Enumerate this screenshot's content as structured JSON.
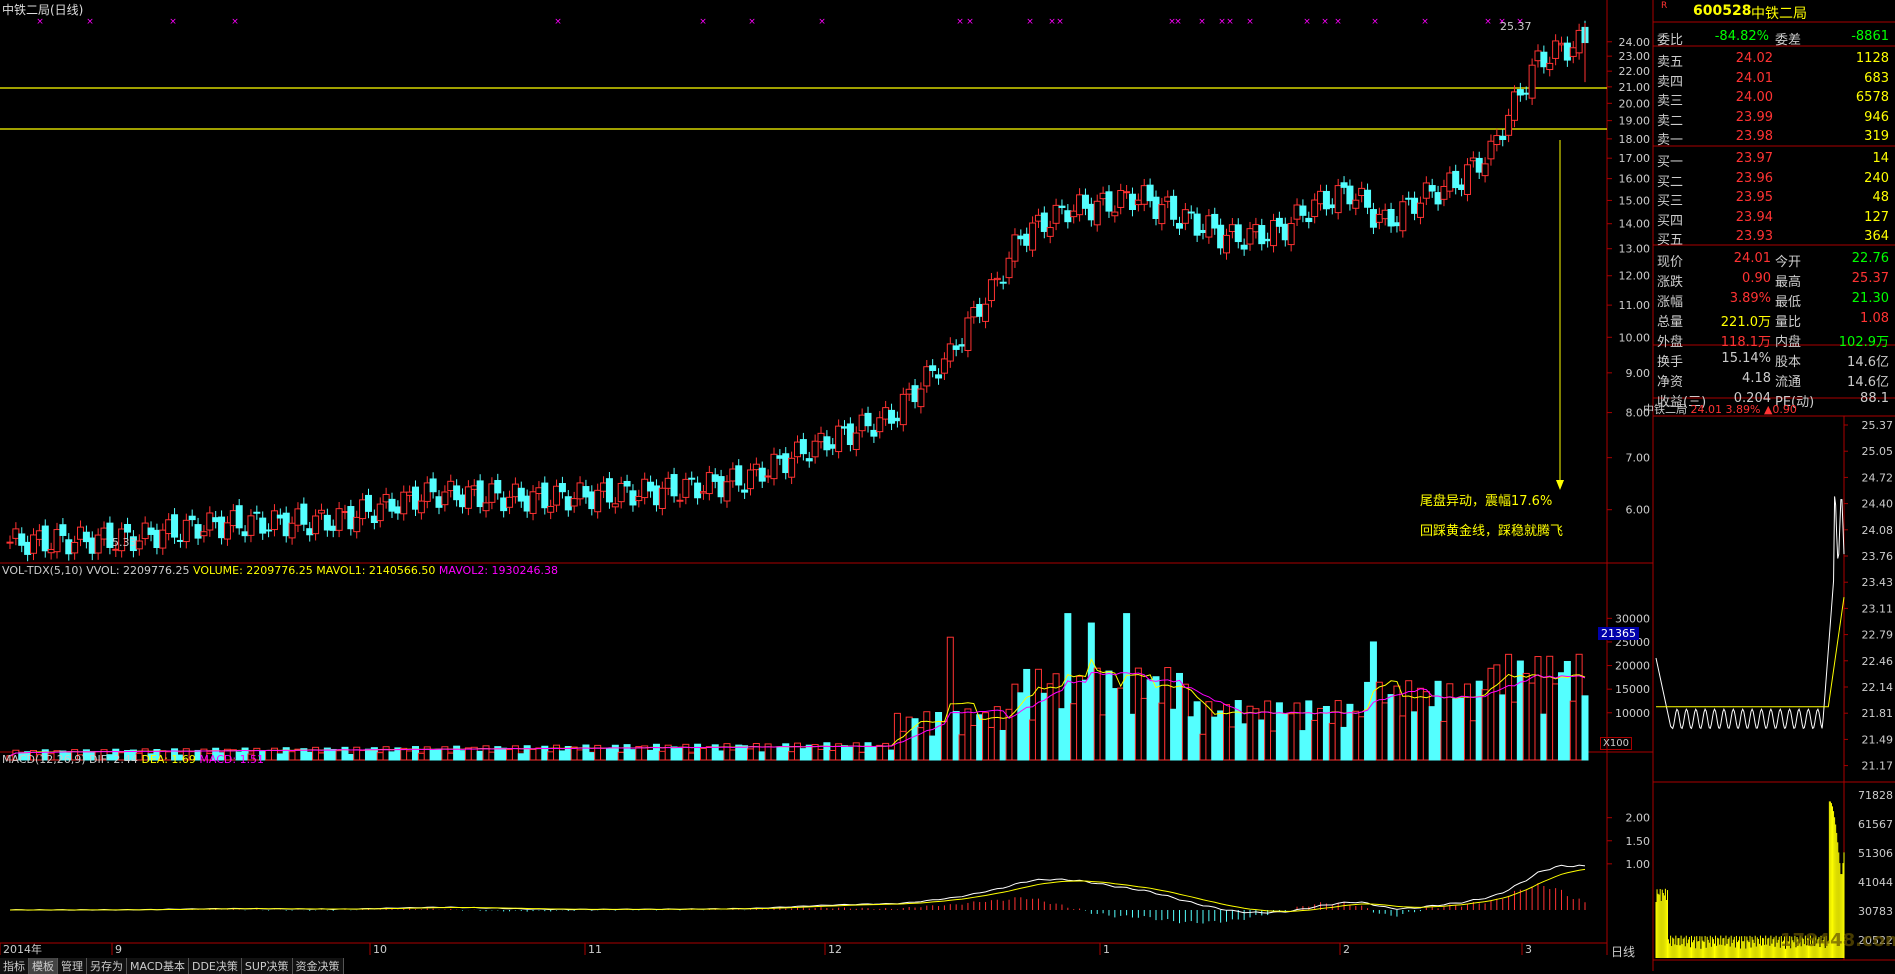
{
  "main_chart": {
    "title": "中铁二局(日线)",
    "high_marker": "25.37",
    "low_marker": "5.33",
    "annotations": [
      "尾盘异动，震幅17.6%",
      "回踩黄金线，踩稳就腾飞"
    ],
    "y_ticks": [
      "24.00",
      "23.00",
      "22.00",
      "21.00",
      "20.00",
      "19.00",
      "18.00",
      "17.00",
      "16.00",
      "15.00",
      "14.00",
      "13.00",
      "12.00",
      "11.00",
      "10.00",
      "9.00",
      "8.00",
      "7.00",
      "6.00"
    ],
    "x_ticks": [
      "2014年",
      "9",
      "10",
      "11",
      "12",
      "1",
      "2",
      "3"
    ]
  },
  "volume_panel": {
    "indicator": "VOL-TDX(5,10)",
    "vvol": "VVOL: 2209776.25",
    "volume": "VOLUME: 2209776.25",
    "mavol1": "MAVOL1: 2140566.50",
    "mavol2": "MAVOL2: 1930246.38",
    "y_ticks": [
      "30000",
      "25000",
      "20000",
      "15000",
      "10000"
    ],
    "marker": "21365",
    "unit": "X100"
  },
  "macd_panel": {
    "indicator": "MACD(12,26,9)",
    "dif": "DIF: 2.44",
    "dea": "DEA: 1.69",
    "macd": "MACD: 1.51",
    "y_ticks": [
      "2.00",
      "1.50",
      "1.00"
    ]
  },
  "quote_panel": {
    "code": "600528",
    "name": "中铁二局",
    "r_mark": "R",
    "webi_label": "委比",
    "webi_value": "-84.82%",
    "wecha_label": "委差",
    "wecha_value": "-8861",
    "asks": [
      {
        "label": "卖五",
        "price": "24.02",
        "vol": "1128"
      },
      {
        "label": "卖四",
        "price": "24.01",
        "vol": "683"
      },
      {
        "label": "卖三",
        "price": "24.00",
        "vol": "6578"
      },
      {
        "label": "卖二",
        "price": "23.99",
        "vol": "946"
      },
      {
        "label": "卖一",
        "price": "23.98",
        "vol": "319"
      }
    ],
    "bids": [
      {
        "label": "买一",
        "price": "23.97",
        "vol": "14"
      },
      {
        "label": "买二",
        "price": "23.96",
        "vol": "240"
      },
      {
        "label": "买三",
        "price": "23.95",
        "vol": "48"
      },
      {
        "label": "买四",
        "price": "23.94",
        "vol": "127"
      },
      {
        "label": "买五",
        "price": "23.93",
        "vol": "364"
      }
    ],
    "stats": [
      {
        "l1": "现价",
        "v1": "24.01",
        "l2": "今开",
        "v2": "22.76"
      },
      {
        "l1": "涨跌",
        "v1": "0.90",
        "l2": "最高",
        "v2": "25.37"
      },
      {
        "l1": "涨幅",
        "v1": "3.89%",
        "l2": "最低",
        "v2": "21.30"
      },
      {
        "l1": "总量",
        "v1": "221.0万",
        "l2": "量比",
        "v2": "1.08"
      },
      {
        "l1": "外盘",
        "v1": "118.1万",
        "l2": "内盘",
        "v2": "102.9万"
      },
      {
        "l1": "换手",
        "v1": "15.14%",
        "l2": "股本",
        "v2": "14.6亿"
      },
      {
        "l1": "净资",
        "v1": "4.18",
        "l2": "流通",
        "v2": "14.6亿"
      },
      {
        "l1": "收益(三)",
        "v1": "0.204",
        "l2": "PE(动)",
        "v2": "88.1"
      }
    ]
  },
  "intraday": {
    "name": "中铁二局",
    "price": "24.01",
    "pct": "3.89%",
    "change": "▲0.90",
    "price_ticks": [
      "25.37",
      "25.05",
      "24.72",
      "24.40",
      "24.08",
      "23.76",
      "23.43",
      "23.11",
      "22.79",
      "22.46",
      "22.14",
      "21.81",
      "21.49",
      "21.17"
    ],
    "vol_ticks": [
      "71828",
      "61567",
      "51306",
      "41044",
      "30783",
      "20522"
    ],
    "footer": "日线"
  },
  "bottom_tabs": [
    "指标",
    "模板",
    "管理",
    "另存为",
    "MACD基本",
    "DDE决策",
    "SUP决策",
    "资金决策"
  ],
  "watermark": "178448.com"
}
